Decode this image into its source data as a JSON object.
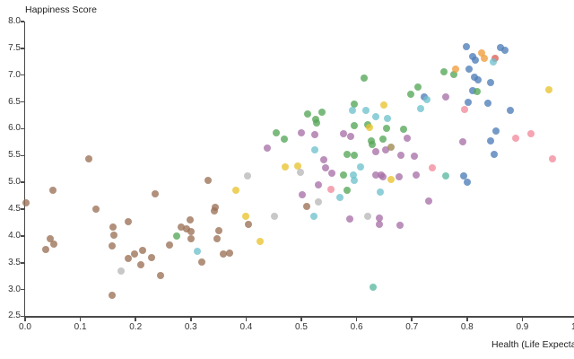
{
  "chart_data": {
    "type": "scatter",
    "title": "",
    "ylabel": "Happiness Score",
    "xlabel": "Health (Life Expectancy)",
    "xlim": [
      0.0,
      1.0
    ],
    "ylim": [
      2.5,
      8.0
    ],
    "grid": false,
    "legend_position": "none",
    "x_ticks": [
      "0.0",
      "0.1",
      "0.2",
      "0.3",
      "0.4",
      "0.5",
      "0.6",
      "0.7",
      "0.8",
      "0.9",
      "1.0"
    ],
    "y_ticks": [
      "2.5",
      "3.0",
      "3.5",
      "4.0",
      "4.5",
      "5.0",
      "5.5",
      "6.0",
      "6.5",
      "7.0",
      "7.5",
      "8.0"
    ],
    "axis_color": "#4a4a4a",
    "series": [
      {
        "name": "blue",
        "color": "#4e7db8",
        "points": [
          [
            0.798,
            7.53
          ],
          [
            0.81,
            7.35
          ],
          [
            0.815,
            7.28
          ],
          [
            0.861,
            7.52
          ],
          [
            0.868,
            7.47
          ],
          [
            0.804,
            7.12
          ],
          [
            0.814,
            6.97
          ],
          [
            0.819,
            6.92
          ],
          [
            0.843,
            6.86
          ],
          [
            0.81,
            6.71
          ],
          [
            0.802,
            6.49
          ],
          [
            0.837,
            6.48
          ],
          [
            0.879,
            6.34
          ],
          [
            0.722,
            6.59
          ],
          [
            0.852,
            5.96
          ],
          [
            0.842,
            5.77
          ],
          [
            0.849,
            5.52
          ],
          [
            0.794,
            5.12
          ],
          [
            0.801,
            5.01
          ]
        ]
      },
      {
        "name": "green",
        "color": "#56a659",
        "points": [
          [
            0.614,
            6.95
          ],
          [
            0.758,
            7.06
          ],
          [
            0.776,
            7.02
          ],
          [
            0.698,
            6.64
          ],
          [
            0.711,
            6.77
          ],
          [
            0.818,
            6.69
          ],
          [
            0.511,
            6.27
          ],
          [
            0.526,
            6.18
          ],
          [
            0.538,
            6.31
          ],
          [
            0.596,
            6.46
          ],
          [
            0.527,
            6.11
          ],
          [
            0.596,
            6.06
          ],
          [
            0.62,
            6.07
          ],
          [
            0.654,
            6.0
          ],
          [
            0.685,
            5.99
          ],
          [
            0.627,
            5.78
          ],
          [
            0.628,
            5.71
          ],
          [
            0.647,
            5.81
          ],
          [
            0.583,
            5.53
          ],
          [
            0.596,
            5.5
          ],
          [
            0.577,
            5.14
          ],
          [
            0.582,
            4.85
          ],
          [
            0.455,
            5.92
          ],
          [
            0.469,
            5.81
          ],
          [
            0.275,
            4.0
          ]
        ]
      },
      {
        "name": "orange",
        "color": "#f09c3c",
        "points": [
          [
            0.827,
            7.41
          ],
          [
            0.831,
            7.31
          ],
          [
            0.779,
            7.11
          ]
        ]
      },
      {
        "name": "red",
        "color": "#dd6058",
        "points": [
          [
            0.85,
            7.32
          ]
        ]
      },
      {
        "name": "cyan",
        "color": "#6fc2cd",
        "points": [
          [
            0.848,
            7.24
          ],
          [
            0.728,
            6.54
          ],
          [
            0.716,
            6.37
          ],
          [
            0.592,
            6.35
          ],
          [
            0.617,
            6.34
          ],
          [
            0.635,
            6.23
          ],
          [
            0.656,
            6.2
          ],
          [
            0.525,
            5.61
          ],
          [
            0.607,
            5.29
          ],
          [
            0.594,
            5.13
          ],
          [
            0.596,
            5.04
          ],
          [
            0.643,
            4.82
          ],
          [
            0.57,
            4.72
          ],
          [
            0.522,
            4.36
          ],
          [
            0.311,
            3.71
          ]
        ]
      },
      {
        "name": "teal",
        "color": "#5bb9a2",
        "points": [
          [
            0.762,
            5.12
          ],
          [
            0.63,
            3.04
          ]
        ]
      },
      {
        "name": "purple",
        "color": "#a871a8",
        "points": [
          [
            0.761,
            6.59
          ],
          [
            0.5,
            5.93
          ],
          [
            0.524,
            5.89
          ],
          [
            0.576,
            5.91
          ],
          [
            0.589,
            5.85
          ],
          [
            0.439,
            5.64
          ],
          [
            0.692,
            5.82
          ],
          [
            0.635,
            5.57
          ],
          [
            0.653,
            5.6
          ],
          [
            0.68,
            5.5
          ],
          [
            0.704,
            5.49
          ],
          [
            0.541,
            5.42
          ],
          [
            0.544,
            5.27
          ],
          [
            0.555,
            5.17
          ],
          [
            0.634,
            5.13
          ],
          [
            0.645,
            5.14
          ],
          [
            0.647,
            5.1
          ],
          [
            0.677,
            5.11
          ],
          [
            0.707,
            5.14
          ],
          [
            0.531,
            4.96
          ],
          [
            0.501,
            4.77
          ],
          [
            0.731,
            4.65
          ],
          [
            0.587,
            4.32
          ],
          [
            0.641,
            4.33
          ],
          [
            0.641,
            4.22
          ],
          [
            0.679,
            4.2
          ],
          [
            0.792,
            5.76
          ]
        ]
      },
      {
        "name": "pink",
        "color": "#f28b9b",
        "points": [
          [
            0.795,
            6.36
          ],
          [
            0.737,
            5.27
          ],
          [
            0.888,
            5.82
          ],
          [
            0.915,
            5.91
          ],
          [
            0.954,
            5.44
          ],
          [
            0.554,
            4.87
          ]
        ]
      },
      {
        "name": "yellow",
        "color": "#e9c32f",
        "points": [
          [
            0.948,
            6.72
          ],
          [
            0.649,
            6.45
          ],
          [
            0.624,
            6.02
          ],
          [
            0.47,
            5.28
          ],
          [
            0.493,
            5.3
          ],
          [
            0.382,
            4.86
          ],
          [
            0.662,
            5.05
          ],
          [
            0.4,
            4.37
          ],
          [
            0.425,
            3.89
          ]
        ]
      },
      {
        "name": "olive",
        "color": "#9e8751",
        "points": [
          [
            0.662,
            5.66
          ]
        ]
      },
      {
        "name": "brown",
        "color": "#9b7157",
        "points": [
          [
            0.001,
            4.61
          ],
          [
            0.051,
            4.86
          ],
          [
            0.115,
            5.43
          ],
          [
            0.128,
            4.5
          ],
          [
            0.236,
            4.79
          ],
          [
            0.187,
            4.26
          ],
          [
            0.159,
            4.17
          ],
          [
            0.161,
            4.02
          ],
          [
            0.045,
            3.94
          ],
          [
            0.052,
            3.85
          ],
          [
            0.037,
            3.74
          ],
          [
            0.157,
            3.81
          ],
          [
            0.198,
            3.66
          ],
          [
            0.213,
            3.73
          ],
          [
            0.187,
            3.58
          ],
          [
            0.229,
            3.6
          ],
          [
            0.209,
            3.46
          ],
          [
            0.157,
            2.89
          ],
          [
            0.331,
            5.04
          ],
          [
            0.344,
            4.53
          ],
          [
            0.343,
            4.47
          ],
          [
            0.298,
            4.3
          ],
          [
            0.282,
            4.17
          ],
          [
            0.293,
            4.13
          ],
          [
            0.301,
            4.09
          ],
          [
            0.3,
            3.95
          ],
          [
            0.262,
            3.83
          ],
          [
            0.35,
            4.1
          ],
          [
            0.347,
            3.95
          ],
          [
            0.404,
            4.22
          ],
          [
            0.358,
            3.67
          ],
          [
            0.37,
            3.68
          ],
          [
            0.32,
            3.51
          ],
          [
            0.245,
            3.27
          ],
          [
            0.509,
            4.55
          ]
        ]
      },
      {
        "name": "gray",
        "color": "#b9b9b9",
        "points": [
          [
            0.402,
            5.12
          ],
          [
            0.498,
            5.18
          ],
          [
            0.451,
            4.37
          ],
          [
            0.531,
            4.64
          ],
          [
            0.173,
            3.35
          ],
          [
            0.62,
            4.37
          ]
        ]
      }
    ]
  }
}
